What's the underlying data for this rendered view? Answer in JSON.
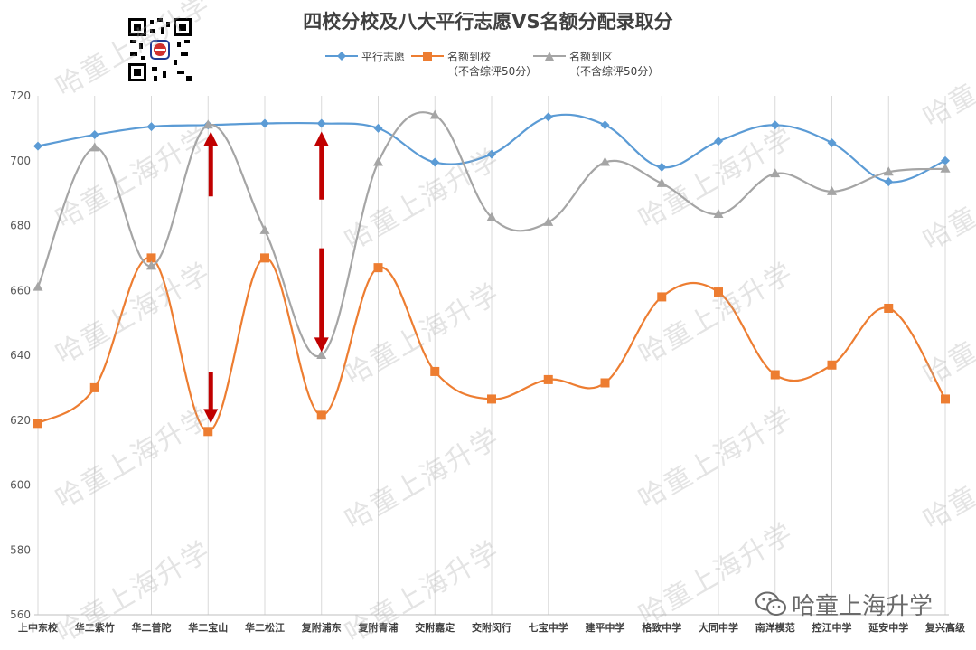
{
  "title": "四校分校及八大平行志愿VS名额分配录取分",
  "watermark": "哈童上海升学",
  "brand_label": "哈童上海升学",
  "legend_note": "（不含综评50分）",
  "colors": {
    "blue": "#5b9bd5",
    "orange": "#ed7d31",
    "gray": "#a5a5a5",
    "arrow": "#c00000",
    "grid": "#d9d9d9"
  },
  "chart_data": {
    "type": "line",
    "title": "四校分校及八大平行志愿VS名额分配录取分",
    "categories": [
      "上中东校",
      "华二紫竹",
      "华二普陀",
      "华二宝山",
      "华二松江",
      "复附浦东",
      "复附青浦",
      "交附嘉定",
      "交附闵行",
      "七宝中学",
      "建平中学",
      "格致中学",
      "大同中学",
      "南洋模范",
      "控江中学",
      "延安中学",
      "复兴高级"
    ],
    "ylim": [
      560,
      720
    ],
    "yticks": [
      560,
      580,
      600,
      620,
      640,
      660,
      680,
      700,
      720
    ],
    "grid": "vertical",
    "legend_position": "top",
    "series": [
      {
        "name": "平行志愿",
        "color": "#5b9bd5",
        "marker": "diamond",
        "values": [
          704.5,
          708,
          710.5,
          711,
          711.5,
          711.5,
          710,
          699.5,
          702,
          713.5,
          711,
          698,
          706,
          711,
          705.5,
          693.5,
          700
        ]
      },
      {
        "name": "名额到校",
        "note": "（不含综评50分）",
        "color": "#ed7d31",
        "marker": "square",
        "values": [
          619,
          630,
          670,
          616.5,
          670,
          621.5,
          667,
          635,
          626.5,
          632.5,
          631.5,
          658,
          659.5,
          634,
          637,
          654.5,
          626.5
        ]
      },
      {
        "name": "名额到区",
        "note": "（不含综评50分）",
        "color": "#a5a5a5",
        "marker": "triangle",
        "values": [
          661,
          704,
          667.5,
          711,
          678.5,
          640,
          699.5,
          714,
          682.5,
          681,
          699.5,
          693,
          683.5,
          696,
          690.5,
          696.5,
          697.5
        ]
      }
    ],
    "annotations": [
      {
        "type": "arrow",
        "direction": "up",
        "category": "华二宝山",
        "from": 689,
        "to": 709
      },
      {
        "type": "arrow",
        "direction": "up",
        "category": "复附浦东",
        "from": 688,
        "to": 709
      },
      {
        "type": "arrow",
        "direction": "down",
        "category": "复附浦东",
        "from": 673,
        "to": 641
      },
      {
        "type": "arrow",
        "direction": "down",
        "category": "华二宝山",
        "from": 635,
        "to": 619
      }
    ]
  }
}
